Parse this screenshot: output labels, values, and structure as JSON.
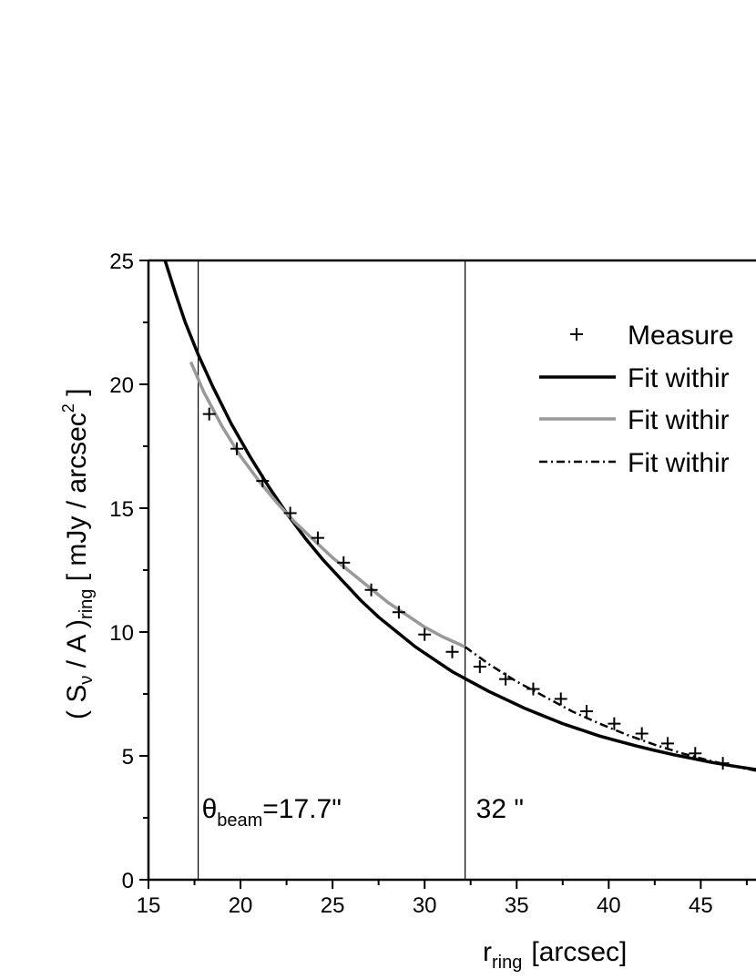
{
  "chart_data": {
    "type": "line",
    "xlabel": {
      "main": "r",
      "sub": "ring",
      "unit": "[arcsec]"
    },
    "ylabel": {
      "open": "( S",
      "sub_nu": "ν",
      "mid": " / A )",
      "sub_ring": "ring",
      "unit": " [ mJy / arcsec",
      "sup": "2",
      "close": " ]"
    },
    "xlim": [
      15,
      48
    ],
    "ylim": [
      0,
      25
    ],
    "xticks": [
      15,
      20,
      25,
      30,
      35,
      40,
      45
    ],
    "yticks": [
      0,
      5,
      10,
      15,
      20,
      25
    ],
    "grid": false,
    "legend_position": "top-right",
    "legend": [
      {
        "label": "Measure",
        "marker": "plus",
        "color": "#000000"
      },
      {
        "label": "Fit withir",
        "style": "solid",
        "color": "#000000"
      },
      {
        "label": "Fit withir",
        "style": "solid",
        "color": "#999999"
      },
      {
        "label": "Fit withir",
        "style": "dashdot",
        "color": "#000000"
      }
    ],
    "series": [
      {
        "kind": "points",
        "x": [
          18.3,
          19.8,
          21.2,
          22.7,
          24.2,
          25.6,
          27.1,
          28.6,
          30.0,
          31.5,
          33.0,
          34.4,
          35.9,
          37.4,
          38.8,
          40.3,
          41.8,
          43.2,
          44.7,
          46.2
        ],
        "y": [
          18.8,
          17.4,
          16.1,
          14.8,
          13.8,
          12.8,
          11.7,
          10.8,
          9.9,
          9.2,
          8.6,
          8.1,
          7.7,
          7.3,
          6.8,
          6.3,
          5.9,
          5.5,
          5.1,
          4.7
        ]
      },
      {
        "kind": "line",
        "color": "#000000",
        "style": "solid",
        "width": 3.5,
        "x": [
          15.9,
          16.5,
          17.0,
          17.7,
          18.5,
          19.5,
          20.5,
          21.5,
          22.5,
          23.5,
          24.5,
          25.5,
          26.5,
          27.5,
          28.5,
          29.5,
          30.5,
          31.5,
          32.5,
          33.5,
          34.5,
          35.5,
          36.5,
          37.5,
          38.5,
          39.5,
          40.5,
          41.5,
          42.5,
          43.5,
          44.5,
          45.5,
          46.5,
          48.0
        ],
        "y": [
          25.0,
          23.6,
          22.5,
          21.2,
          19.9,
          18.4,
          17.1,
          15.9,
          14.8,
          13.8,
          12.9,
          12.1,
          11.3,
          10.6,
          10.0,
          9.4,
          8.9,
          8.4,
          8.0,
          7.6,
          7.25,
          6.9,
          6.6,
          6.3,
          6.05,
          5.8,
          5.6,
          5.4,
          5.22,
          5.05,
          4.9,
          4.75,
          4.62,
          4.45
        ]
      },
      {
        "kind": "line",
        "color": "#999999",
        "style": "solid",
        "width": 3.5,
        "x": [
          17.3,
          18.0,
          19.0,
          20.0,
          21.0,
          22.0,
          23.0,
          24.0,
          25.0,
          26.0,
          27.0,
          28.0,
          29.0,
          30.0,
          31.0,
          32.2
        ],
        "y": [
          20.9,
          19.7,
          18.3,
          17.1,
          16.1,
          15.2,
          14.4,
          13.7,
          13.0,
          12.4,
          11.8,
          11.2,
          10.7,
          10.2,
          9.8,
          9.4
        ]
      },
      {
        "kind": "line",
        "color": "#000000",
        "style": "dashdot",
        "width": 2.5,
        "x": [
          32.2,
          33.5,
          35.0,
          36.5,
          38.0,
          39.5,
          41.0,
          42.5,
          44.0,
          45.5,
          47.0,
          48.0
        ],
        "y": [
          9.4,
          8.7,
          8.0,
          7.4,
          6.8,
          6.3,
          5.85,
          5.45,
          5.1,
          4.8,
          4.55,
          4.4
        ]
      }
    ],
    "vlines": [
      {
        "x": 17.7,
        "label_main": "θ",
        "label_sub": "beam",
        "label_rest": "=17.7\""
      },
      {
        "x": 32.2,
        "label": "32 \""
      }
    ]
  }
}
